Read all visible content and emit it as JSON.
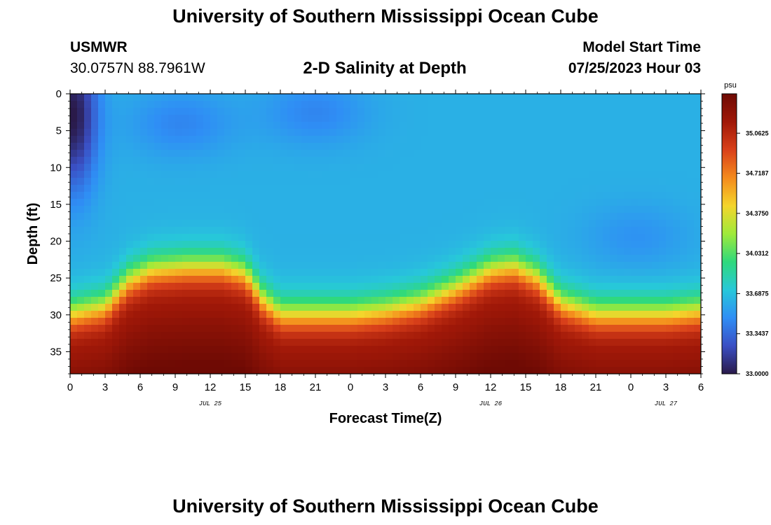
{
  "header": {
    "title": "University of Southern Mississippi Ocean Cube",
    "station": "USMWR",
    "coords": "30.0757N  88.7961W",
    "chart_title": "2-D Salinity at Depth",
    "model_label": "Model Start Time",
    "model_time": "07/25/2023 Hour 03"
  },
  "footer": {
    "title": "University of Southern Mississippi Ocean Cube"
  },
  "chart_data": {
    "type": "heatmap",
    "title": "2-D Salinity at Depth",
    "xlabel": "Forecast Time(Z)",
    "ylabel": "Depth (ft)",
    "x_tick_labels": [
      "0",
      "3",
      "6",
      "9",
      "12",
      "15",
      "18",
      "21",
      "0",
      "3",
      "6",
      "9",
      "12",
      "15",
      "18",
      "21",
      "0",
      "3",
      "6"
    ],
    "x_range_hours": [
      0,
      54
    ],
    "date_labels": [
      {
        "text": "JUL 25",
        "hour": 12
      },
      {
        "text": "JUL 26",
        "hour": 36
      },
      {
        "text": "JUL 27",
        "hour": 51
      }
    ],
    "y_ticks": [
      0,
      5,
      10,
      15,
      20,
      25,
      30,
      35
    ],
    "y_range_ft": [
      0,
      38
    ],
    "colorbar": {
      "unit": "psu",
      "min": 33.0,
      "max": 35.4,
      "labels": [
        "35.0625",
        "34.7187",
        "34.3750",
        "34.0312",
        "33.6875",
        "33.3437",
        "33.0000"
      ],
      "colors": [
        "#2a1a4a",
        "#3a4fc4",
        "#2f8ef5",
        "#27c8d9",
        "#2fd97c",
        "#9fea3a",
        "#f4d52c",
        "#f48a1c",
        "#d9401a",
        "#a01808",
        "#6e0a04"
      ]
    },
    "halocline_depth_ft": [
      {
        "hour": 0,
        "depth": 30.0
      },
      {
        "hour": 3,
        "depth": 29.0
      },
      {
        "hour": 5,
        "depth": 25.5
      },
      {
        "hour": 7,
        "depth": 24.0
      },
      {
        "hour": 10,
        "depth": 23.6
      },
      {
        "hour": 13,
        "depth": 23.6
      },
      {
        "hour": 15,
        "depth": 24.5
      },
      {
        "hour": 16.5,
        "depth": 28.0
      },
      {
        "hour": 18,
        "depth": 30.0
      },
      {
        "hour": 21,
        "depth": 30.0
      },
      {
        "hour": 24,
        "depth": 30.0
      },
      {
        "hour": 27,
        "depth": 29.5
      },
      {
        "hour": 30,
        "depth": 28.5
      },
      {
        "hour": 33,
        "depth": 26.5
      },
      {
        "hour": 36,
        "depth": 24.0
      },
      {
        "hour": 38,
        "depth": 23.5
      },
      {
        "hour": 40,
        "depth": 25.0
      },
      {
        "hour": 42,
        "depth": 28.5
      },
      {
        "hour": 45,
        "depth": 30.0
      },
      {
        "hour": 48,
        "depth": 30.0
      },
      {
        "hour": 51,
        "depth": 30.0
      },
      {
        "hour": 54,
        "depth": 29.5
      }
    ],
    "fresh_patches": [
      {
        "hour": 0.3,
        "depth": 3.0,
        "salinity": 33.0
      },
      {
        "hour": 9.5,
        "depth": 4.0,
        "salinity": 33.45
      },
      {
        "hour": 21.0,
        "depth": 2.5,
        "salinity": 33.45
      },
      {
        "hour": 48.5,
        "depth": 19.5,
        "salinity": 33.5
      }
    ]
  }
}
